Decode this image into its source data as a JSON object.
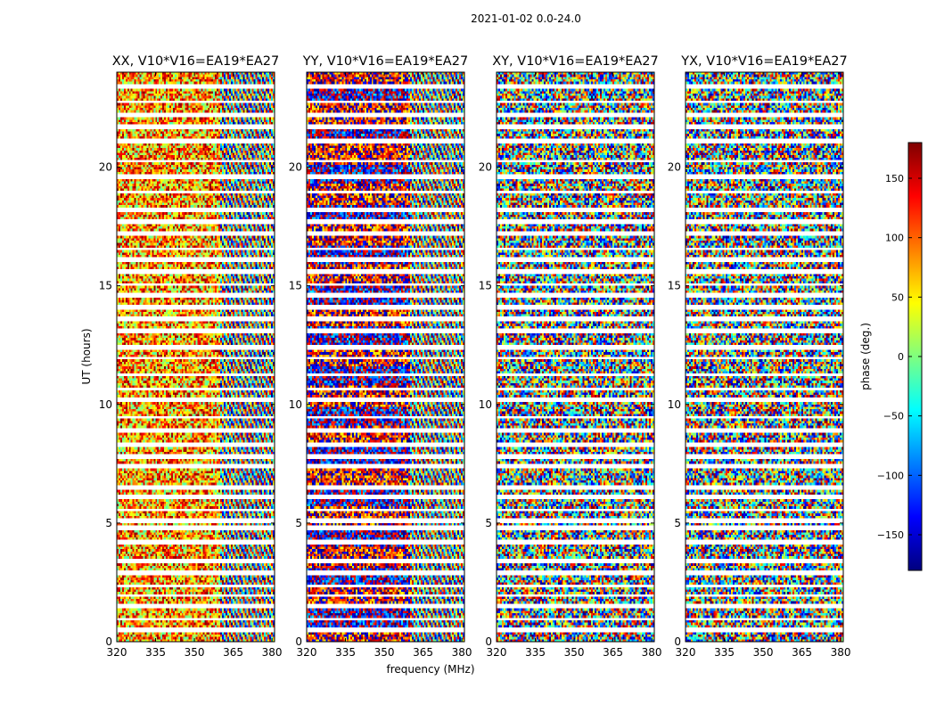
{
  "figure_title": "2021-01-02 0.0-24.0",
  "colors": {
    "jet": [
      "#00007f",
      "#0000ff",
      "#007fff",
      "#00ffff",
      "#7fff7f",
      "#ffff00",
      "#ff7f00",
      "#ff0000",
      "#7f0000"
    ],
    "frame": "#000000",
    "flag": "#ffffff"
  },
  "chart_data": [
    {
      "type": "heatmap",
      "title": "XX, V10*V16=EA19*EA27",
      "xlabel": "",
      "ylabel": "UT (hours)",
      "xlim": [
        320,
        381
      ],
      "ylim": [
        0,
        24
      ],
      "xticks": [
        "320",
        "335",
        "350",
        "365",
        "380"
      ],
      "yticks": [
        "0",
        "5",
        "10",
        "15",
        "20"
      ],
      "phase_character": "warm (orange/yellow) phases in lower-frequency half, fringing stripes at higher frequencies"
    },
    {
      "type": "heatmap",
      "title": "YY, V10*V16=EA19*EA27",
      "xlabel": "frequency (MHz)",
      "ylabel": "",
      "xlim": [
        320,
        381
      ],
      "ylim": [
        0,
        24
      ],
      "xticks": [
        "320",
        "335",
        "350",
        "365",
        "380"
      ],
      "yticks": [
        "0",
        "5",
        "10",
        "15",
        "20"
      ],
      "phase_character": "red and dark-blue phases in lower-frequency half, fringing stripes at higher frequencies"
    },
    {
      "type": "heatmap",
      "title": "XY, V10*V16=EA19*EA27",
      "xlabel": "",
      "ylabel": "",
      "xlim": [
        320,
        381
      ],
      "ylim": [
        0,
        24
      ],
      "xticks": [
        "320",
        "335",
        "350",
        "365",
        "380"
      ],
      "yticks": [
        "0",
        "5",
        "10",
        "15",
        "20"
      ],
      "phase_character": "noise-like random phases"
    },
    {
      "type": "heatmap",
      "title": "YX, V10*V16=EA19*EA27",
      "xlabel": "",
      "ylabel": "",
      "xlim": [
        320,
        381
      ],
      "ylim": [
        0,
        24
      ],
      "xticks": [
        "320",
        "335",
        "350",
        "365",
        "380"
      ],
      "yticks": [
        "0",
        "5",
        "10",
        "15",
        "20"
      ],
      "phase_character": "noise-like random phases"
    }
  ],
  "colorbar": {
    "label": "phase (deg.)",
    "range": [
      -180,
      180
    ],
    "ticks": [
      "150",
      "100",
      "50",
      "0",
      "−50",
      "−100",
      "−150"
    ],
    "tick_values": [
      150,
      100,
      50,
      0,
      -50,
      -100,
      -150
    ]
  },
  "flagged_gaps_hours": [
    0.5,
    0.95,
    1.5,
    1.95,
    2.35,
    2.9,
    3.4,
    4.2,
    4.8,
    5.1,
    5.55,
    6.1,
    6.5,
    7.4,
    7.8,
    8.3,
    8.9,
    9.45,
    10.2,
    10.65,
    11.25,
    11.95,
    12.4,
    13.1,
    13.6,
    14.1,
    14.6,
    15.05,
    15.6,
    16.1,
    16.55,
    17.2,
    17.7,
    18.2,
    18.95,
    19.6,
    20.25,
    21.1,
    21.7,
    22.2,
    22.75,
    23.4
  ]
}
